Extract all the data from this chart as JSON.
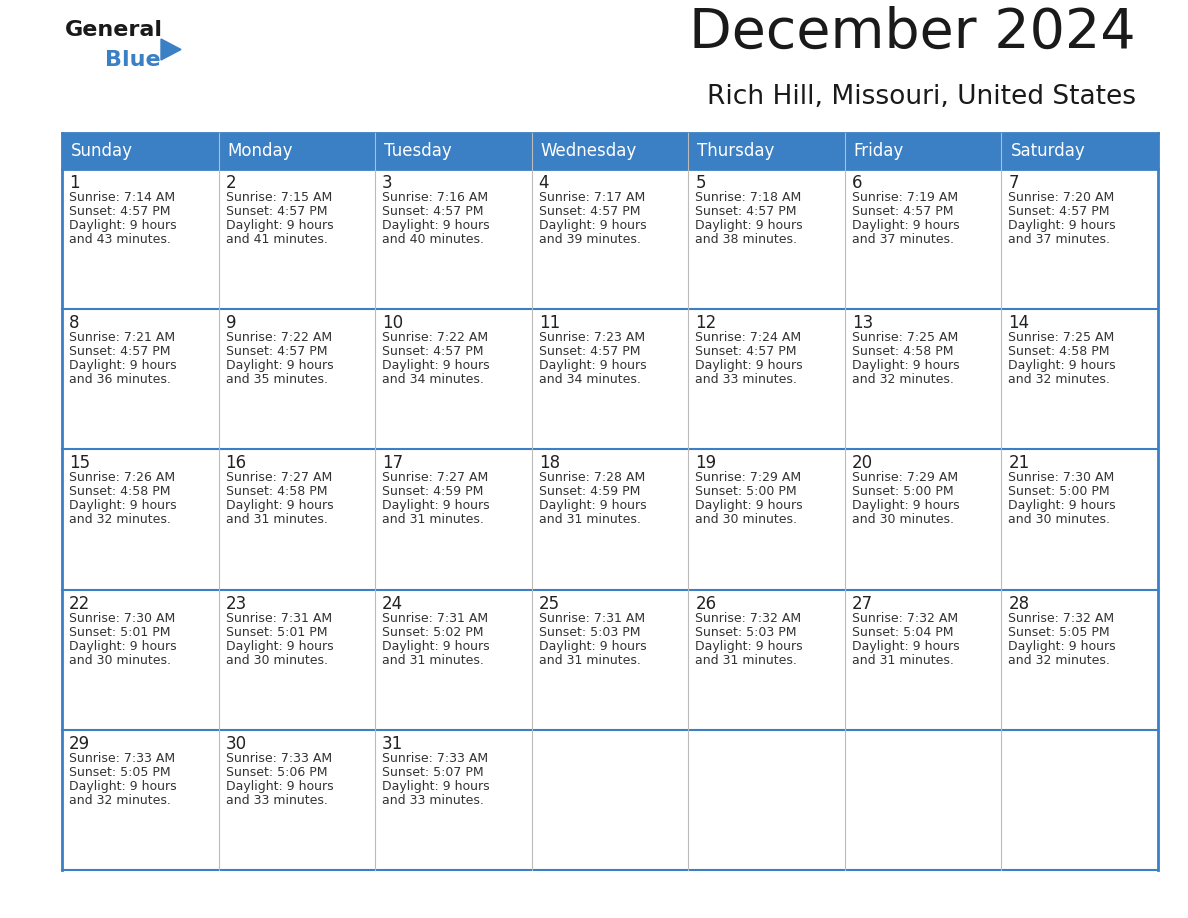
{
  "title": "December 2024",
  "subtitle": "Rich Hill, Missouri, United States",
  "header_color": "#3b7fc4",
  "header_text_color": "#ffffff",
  "border_color": "#3b7fc4",
  "row_separator_color": "#3b7fc4",
  "col_separator_color": "#aaaaaa",
  "cell_bg_color": "#ffffff",
  "cell_text_color": "#333333",
  "day_number_color": "#222222",
  "days_of_week": [
    "Sunday",
    "Monday",
    "Tuesday",
    "Wednesday",
    "Thursday",
    "Friday",
    "Saturday"
  ],
  "calendar_data": [
    [
      {
        "day": 1,
        "sunrise": "7:14 AM",
        "sunset": "4:57 PM",
        "daylight_hrs": 9,
        "daylight_min": 43
      },
      {
        "day": 2,
        "sunrise": "7:15 AM",
        "sunset": "4:57 PM",
        "daylight_hrs": 9,
        "daylight_min": 41
      },
      {
        "day": 3,
        "sunrise": "7:16 AM",
        "sunset": "4:57 PM",
        "daylight_hrs": 9,
        "daylight_min": 40
      },
      {
        "day": 4,
        "sunrise": "7:17 AM",
        "sunset": "4:57 PM",
        "daylight_hrs": 9,
        "daylight_min": 39
      },
      {
        "day": 5,
        "sunrise": "7:18 AM",
        "sunset": "4:57 PM",
        "daylight_hrs": 9,
        "daylight_min": 38
      },
      {
        "day": 6,
        "sunrise": "7:19 AM",
        "sunset": "4:57 PM",
        "daylight_hrs": 9,
        "daylight_min": 37
      },
      {
        "day": 7,
        "sunrise": "7:20 AM",
        "sunset": "4:57 PM",
        "daylight_hrs": 9,
        "daylight_min": 37
      }
    ],
    [
      {
        "day": 8,
        "sunrise": "7:21 AM",
        "sunset": "4:57 PM",
        "daylight_hrs": 9,
        "daylight_min": 36
      },
      {
        "day": 9,
        "sunrise": "7:22 AM",
        "sunset": "4:57 PM",
        "daylight_hrs": 9,
        "daylight_min": 35
      },
      {
        "day": 10,
        "sunrise": "7:22 AM",
        "sunset": "4:57 PM",
        "daylight_hrs": 9,
        "daylight_min": 34
      },
      {
        "day": 11,
        "sunrise": "7:23 AM",
        "sunset": "4:57 PM",
        "daylight_hrs": 9,
        "daylight_min": 34
      },
      {
        "day": 12,
        "sunrise": "7:24 AM",
        "sunset": "4:57 PM",
        "daylight_hrs": 9,
        "daylight_min": 33
      },
      {
        "day": 13,
        "sunrise": "7:25 AM",
        "sunset": "4:58 PM",
        "daylight_hrs": 9,
        "daylight_min": 32
      },
      {
        "day": 14,
        "sunrise": "7:25 AM",
        "sunset": "4:58 PM",
        "daylight_hrs": 9,
        "daylight_min": 32
      }
    ],
    [
      {
        "day": 15,
        "sunrise": "7:26 AM",
        "sunset": "4:58 PM",
        "daylight_hrs": 9,
        "daylight_min": 32
      },
      {
        "day": 16,
        "sunrise": "7:27 AM",
        "sunset": "4:58 PM",
        "daylight_hrs": 9,
        "daylight_min": 31
      },
      {
        "day": 17,
        "sunrise": "7:27 AM",
        "sunset": "4:59 PM",
        "daylight_hrs": 9,
        "daylight_min": 31
      },
      {
        "day": 18,
        "sunrise": "7:28 AM",
        "sunset": "4:59 PM",
        "daylight_hrs": 9,
        "daylight_min": 31
      },
      {
        "day": 19,
        "sunrise": "7:29 AM",
        "sunset": "5:00 PM",
        "daylight_hrs": 9,
        "daylight_min": 30
      },
      {
        "day": 20,
        "sunrise": "7:29 AM",
        "sunset": "5:00 PM",
        "daylight_hrs": 9,
        "daylight_min": 30
      },
      {
        "day": 21,
        "sunrise": "7:30 AM",
        "sunset": "5:00 PM",
        "daylight_hrs": 9,
        "daylight_min": 30
      }
    ],
    [
      {
        "day": 22,
        "sunrise": "7:30 AM",
        "sunset": "5:01 PM",
        "daylight_hrs": 9,
        "daylight_min": 30
      },
      {
        "day": 23,
        "sunrise": "7:31 AM",
        "sunset": "5:01 PM",
        "daylight_hrs": 9,
        "daylight_min": 30
      },
      {
        "day": 24,
        "sunrise": "7:31 AM",
        "sunset": "5:02 PM",
        "daylight_hrs": 9,
        "daylight_min": 31
      },
      {
        "day": 25,
        "sunrise": "7:31 AM",
        "sunset": "5:03 PM",
        "daylight_hrs": 9,
        "daylight_min": 31
      },
      {
        "day": 26,
        "sunrise": "7:32 AM",
        "sunset": "5:03 PM",
        "daylight_hrs": 9,
        "daylight_min": 31
      },
      {
        "day": 27,
        "sunrise": "7:32 AM",
        "sunset": "5:04 PM",
        "daylight_hrs": 9,
        "daylight_min": 31
      },
      {
        "day": 28,
        "sunrise": "7:32 AM",
        "sunset": "5:05 PM",
        "daylight_hrs": 9,
        "daylight_min": 32
      }
    ],
    [
      {
        "day": 29,
        "sunrise": "7:33 AM",
        "sunset": "5:05 PM",
        "daylight_hrs": 9,
        "daylight_min": 32
      },
      {
        "day": 30,
        "sunrise": "7:33 AM",
        "sunset": "5:06 PM",
        "daylight_hrs": 9,
        "daylight_min": 33
      },
      {
        "day": 31,
        "sunrise": "7:33 AM",
        "sunset": "5:07 PM",
        "daylight_hrs": 9,
        "daylight_min": 33
      },
      null,
      null,
      null,
      null
    ]
  ]
}
